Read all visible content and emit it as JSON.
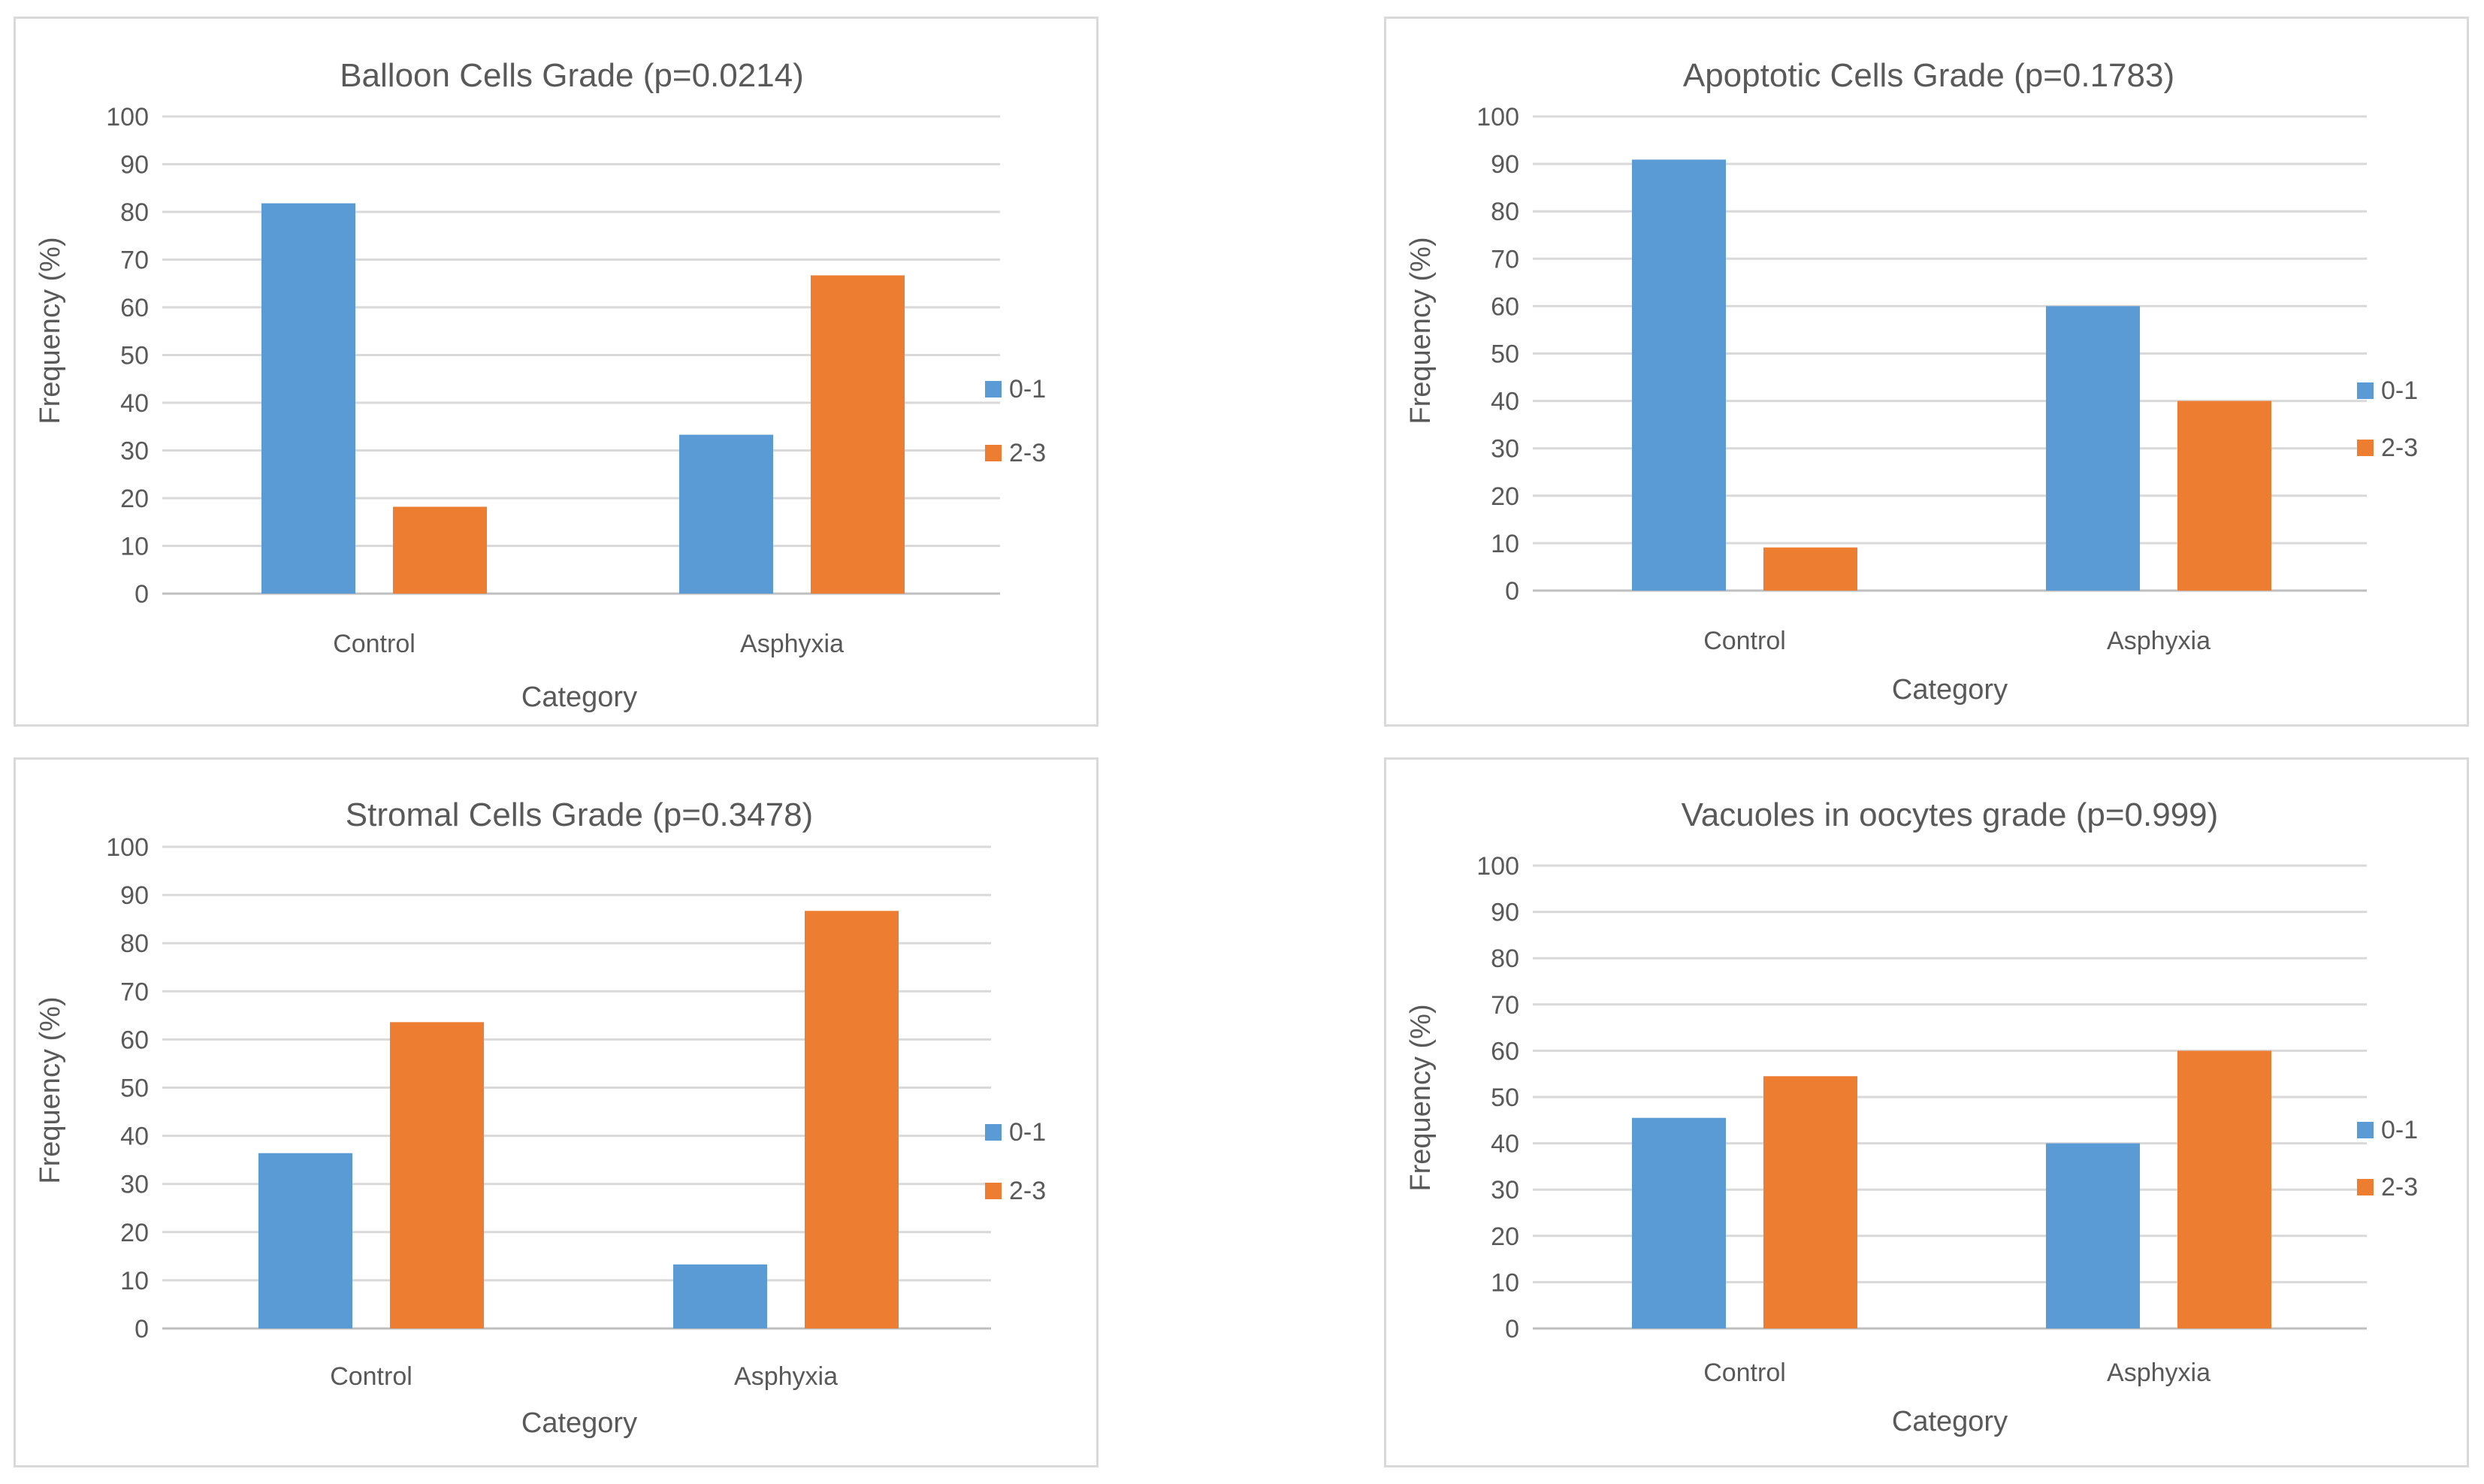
{
  "figure": {
    "colors": {
      "series_0_1": "#5b9bd5",
      "series_2_3": "#ed7d31"
    }
  },
  "chart_data": [
    {
      "type": "bar",
      "title": "Balloon Cells  Grade (p=0.0214)",
      "xlabel": "Category",
      "ylabel": "Frequency (%)",
      "categories": [
        "Control",
        "Asphyxia"
      ],
      "series": [
        {
          "name": "0-1",
          "values": [
            81.8,
            33.3
          ]
        },
        {
          "name": "2-3",
          "values": [
            18.2,
            66.7
          ]
        }
      ],
      "ylim": [
        0,
        100
      ],
      "yticks": [
        "0",
        "10",
        "20",
        "30",
        "40",
        "50",
        "60",
        "70",
        "80",
        "90",
        "100"
      ],
      "legend": "right",
      "grid": true
    },
    {
      "type": "bar",
      "title": "Apoptotic Cells Grade (p=0.1783)",
      "xlabel": "Category",
      "ylabel": "Frequency (%)",
      "categories": [
        "Control",
        "Asphyxia"
      ],
      "series": [
        {
          "name": "0-1",
          "values": [
            90.9,
            60
          ]
        },
        {
          "name": "2-3",
          "values": [
            9.1,
            40
          ]
        }
      ],
      "ylim": [
        0,
        100
      ],
      "yticks": [
        "0",
        "10",
        "20",
        "30",
        "40",
        "50",
        "60",
        "70",
        "80",
        "90",
        "100"
      ],
      "legend": "right",
      "grid": true
    },
    {
      "type": "bar",
      "title": "Stromal Cells Grade (p=0.3478)",
      "xlabel": "Category",
      "ylabel": "Frequency (%)",
      "categories": [
        "Control",
        "Asphyxia"
      ],
      "series": [
        {
          "name": "0-1",
          "values": [
            36.4,
            13.3
          ]
        },
        {
          "name": "2-3",
          "values": [
            63.6,
            86.7
          ]
        }
      ],
      "ylim": [
        0,
        100
      ],
      "yticks": [
        "0",
        "10",
        "20",
        "30",
        "40",
        "50",
        "60",
        "70",
        "80",
        "90",
        "100"
      ],
      "legend": "right",
      "grid": true
    },
    {
      "type": "bar",
      "title": "Vacuoles in oocytes grade (p=0.999)",
      "xlabel": "Category",
      "ylabel": "Frequency (%)",
      "categories": [
        "Control",
        "Asphyxia"
      ],
      "series": [
        {
          "name": "0-1",
          "values": [
            45.5,
            40
          ]
        },
        {
          "name": "2-3",
          "values": [
            54.5,
            60
          ]
        }
      ],
      "ylim": [
        0,
        100
      ],
      "yticks": [
        "0",
        "10",
        "20",
        "30",
        "40",
        "50",
        "60",
        "70",
        "80",
        "90",
        "100"
      ],
      "legend": "right",
      "grid": true
    }
  ]
}
